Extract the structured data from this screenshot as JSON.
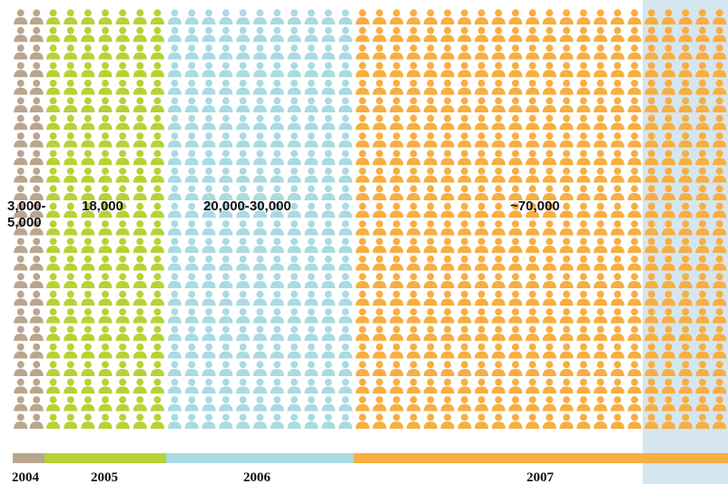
{
  "chart_data": {
    "type": "pictogram",
    "categories": [
      "2004",
      "2005",
      "2006",
      "2007"
    ],
    "values": [
      4000,
      18000,
      25000,
      70000
    ],
    "value_labels": [
      "3,000-5,000",
      "18,000",
      "20,000-30,000",
      "~70,000"
    ],
    "colors": [
      "#b9a68f",
      "#b6d334",
      "#a9dbe1",
      "#f8ae40"
    ]
  }
}
